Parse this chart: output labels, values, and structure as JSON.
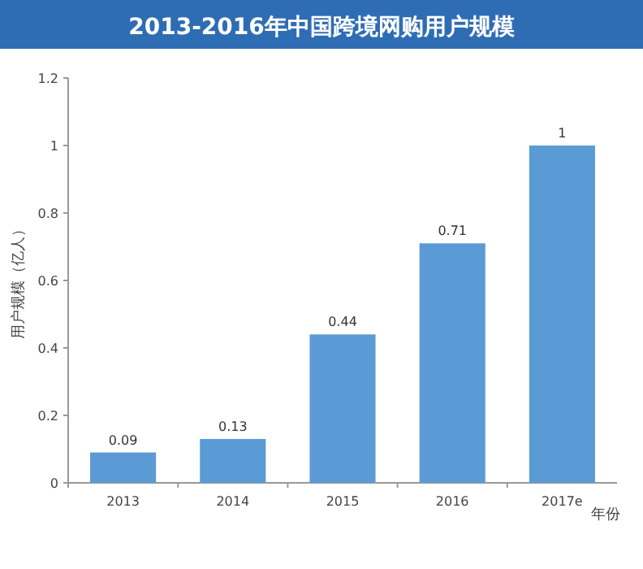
{
  "chart_data": {
    "type": "bar",
    "title": "2013-2016年中国跨境网购用户规模",
    "ylabel": "用户规模（亿人）",
    "xlabel": "年份",
    "categories": [
      "2013",
      "2014",
      "2015",
      "2016",
      "2017e"
    ],
    "values": [
      0.09,
      0.13,
      0.44,
      0.71,
      1
    ],
    "color": "#5b9bd5",
    "ylim": [
      0,
      1.2
    ],
    "yticks": [
      0,
      0.2,
      0.4,
      0.6,
      0.8,
      1,
      1.2
    ],
    "data_labels": true
  }
}
